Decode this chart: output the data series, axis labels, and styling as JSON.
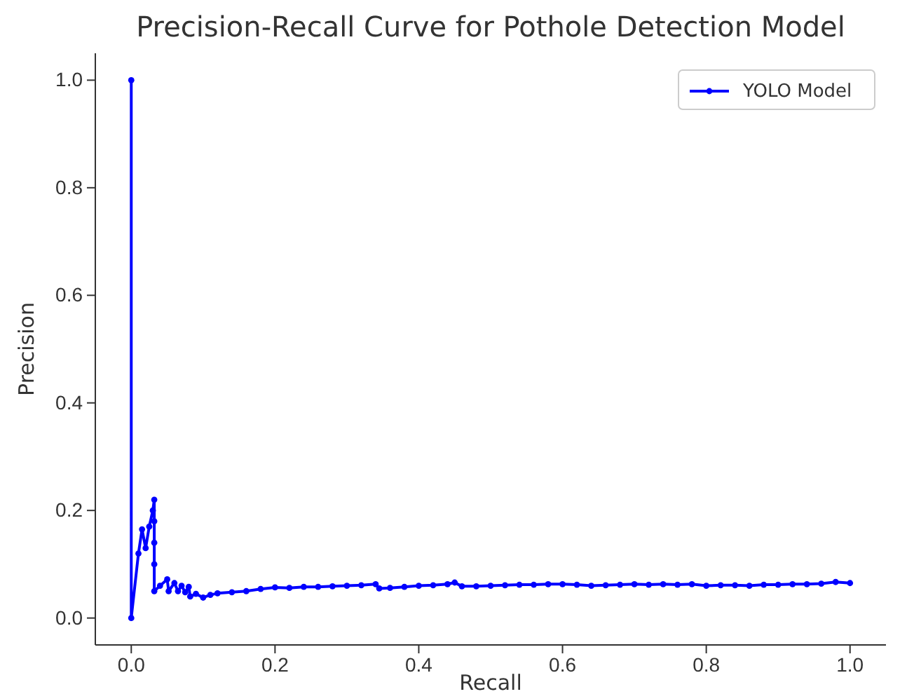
{
  "chart_data": {
    "type": "line",
    "title": "Precision-Recall Curve for Pothole Detection Model",
    "xlabel": "Recall",
    "ylabel": "Precision",
    "xlim": [
      -0.05,
      1.05
    ],
    "ylim": [
      -0.05,
      1.05
    ],
    "xticks": [
      {
        "value": 0,
        "label": "0.0"
      },
      0.2,
      0.4,
      0.6,
      0.8,
      {
        "value": 1,
        "label": "1.0"
      }
    ],
    "yticks": [
      {
        "value": 0,
        "label": "0.0"
      },
      0.2,
      0.4,
      0.6,
      0.8,
      {
        "value": 1,
        "label": "1.0"
      }
    ],
    "legend": "top right",
    "marker": "circle",
    "line_style": "solid",
    "grid": false,
    "series": [
      {
        "name": "YOLO Model",
        "color": "#0000ff",
        "x": [
          0,
          0,
          0.01,
          0.015,
          0.02,
          0.025,
          0.03,
          0.032,
          0.032,
          0.032,
          0.032,
          0.032,
          0.04,
          0.05,
          0.052,
          0.06,
          0.065,
          0.07,
          0.075,
          0.08,
          0.082,
          0.09,
          0.1,
          0.11,
          0.12,
          0.14,
          0.16,
          0.18,
          0.2,
          0.22,
          0.24,
          0.26,
          0.28,
          0.3,
          0.32,
          0.34,
          0.345,
          0.36,
          0.38,
          0.4,
          0.42,
          0.44,
          0.45,
          0.46,
          0.48,
          0.5,
          0.52,
          0.54,
          0.56,
          0.58,
          0.6,
          0.62,
          0.64,
          0.66,
          0.68,
          0.7,
          0.72,
          0.74,
          0.76,
          0.78,
          0.8,
          0.82,
          0.84,
          0.86,
          0.88,
          0.9,
          0.92,
          0.94,
          0.96,
          0.98,
          1.0
        ],
        "values": [
          1.0,
          0,
          0.12,
          0.165,
          0.13,
          0.17,
          0.2,
          0.22,
          0.18,
          0.14,
          0.1,
          0.05,
          0.06,
          0.072,
          0.05,
          0.065,
          0.05,
          0.06,
          0.048,
          0.058,
          0.04,
          0.045,
          0.038,
          0.043,
          0.046,
          0.048,
          0.05,
          0.054,
          0.057,
          0.056,
          0.058,
          0.058,
          0.059,
          0.06,
          0.061,
          0.063,
          0.055,
          0.056,
          0.058,
          0.06,
          0.061,
          0.063,
          0.066,
          0.059,
          0.059,
          0.06,
          0.061,
          0.062,
          0.062,
          0.063,
          0.063,
          0.062,
          0.06,
          0.061,
          0.062,
          0.063,
          0.062,
          0.063,
          0.062,
          0.063,
          0.06,
          0.061,
          0.061,
          0.06,
          0.062,
          0.062,
          0.063,
          0.063,
          0.064,
          0.067,
          0.065
        ]
      }
    ]
  }
}
